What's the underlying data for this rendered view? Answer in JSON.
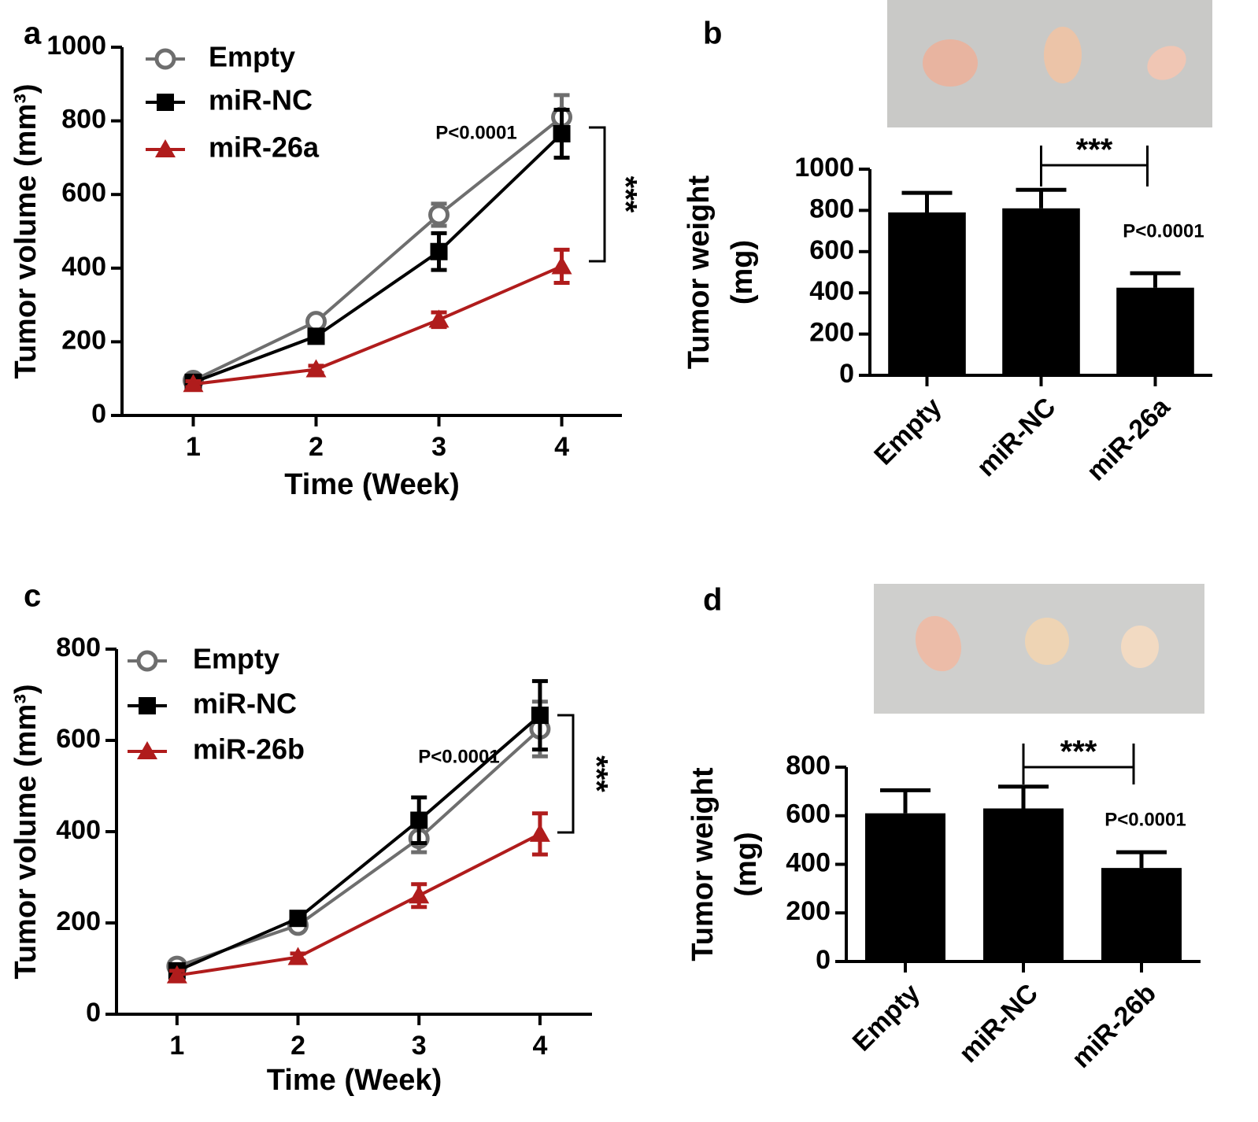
{
  "chart_data": [
    {
      "type": "line",
      "panel_label": "a",
      "xlabel": "Time (Week)",
      "ylabel": "Tumor volume (mm³)",
      "xlim": [
        0.42,
        4.49
      ],
      "xticks": [
        1,
        2,
        3,
        4
      ],
      "ylim": [
        0,
        1000
      ],
      "yticks": [
        0,
        200,
        400,
        600,
        800,
        1000
      ],
      "x": [
        1,
        2,
        3,
        4
      ],
      "series": [
        {
          "name": "Empty",
          "color": "#6e6e6e",
          "marker": "circle",
          "values": [
            95,
            255,
            545,
            810
          ],
          "errors": [
            10,
            15,
            30,
            60
          ]
        },
        {
          "name": "miR-NC",
          "color": "#000000",
          "marker": "square",
          "values": [
            90,
            215,
            445,
            765
          ],
          "errors": [
            10,
            15,
            50,
            65
          ]
        },
        {
          "name": "miR-26a",
          "color": "#b01c1c",
          "marker": "triangle",
          "values": [
            85,
            125,
            260,
            405
          ],
          "errors": [
            8,
            10,
            20,
            45
          ]
        }
      ],
      "annotations": [
        "P<0.0001",
        "***"
      ]
    },
    {
      "type": "bar",
      "panel_label": "b",
      "ylabel": [
        "Tumor weight",
        "(mg)"
      ],
      "categories": [
        "Empty",
        "miR-NC",
        "miR-26a"
      ],
      "values": [
        790,
        810,
        425
      ],
      "errors": [
        95,
        90,
        70
      ],
      "color": "#000000",
      "ylim": [
        0,
        1000
      ],
      "yticks": [
        0,
        200,
        400,
        600,
        800,
        1000
      ],
      "annotations": [
        "***",
        "P<0.0001"
      ]
    },
    {
      "type": "line",
      "panel_label": "c",
      "xlabel": "Time (Week)",
      "ylabel": "Tumor volume (mm³)",
      "xlim": [
        0.5,
        4.43
      ],
      "xticks": [
        1,
        2,
        3,
        4
      ],
      "ylim": [
        0,
        800
      ],
      "yticks": [
        0,
        200,
        400,
        600,
        800
      ],
      "x": [
        1,
        2,
        3,
        4
      ],
      "series": [
        {
          "name": "Empty",
          "color": "#6e6e6e",
          "marker": "circle",
          "values": [
            105,
            195,
            385,
            625
          ],
          "errors": [
            8,
            10,
            30,
            60
          ]
        },
        {
          "name": "miR-NC",
          "color": "#000000",
          "marker": "square",
          "values": [
            95,
            210,
            425,
            655
          ],
          "errors": [
            8,
            12,
            50,
            75
          ]
        },
        {
          "name": "miR-26b",
          "color": "#b01c1c",
          "marker": "triangle",
          "values": [
            85,
            125,
            260,
            395
          ],
          "errors": [
            10,
            8,
            25,
            45
          ]
        }
      ],
      "annotations": [
        "P<0.0001",
        "***"
      ]
    },
    {
      "type": "bar",
      "panel_label": "d",
      "ylabel": [
        "Tumor weight",
        "(mg)"
      ],
      "categories": [
        "Empty",
        "miR-NC",
        "miR-26b"
      ],
      "values": [
        610,
        630,
        385
      ],
      "errors": [
        95,
        90,
        65
      ],
      "color": "#000000",
      "ylim": [
        0,
        800
      ],
      "yticks": [
        0,
        200,
        400,
        600,
        800
      ],
      "annotations": [
        "***",
        "P<0.0001"
      ]
    }
  ]
}
